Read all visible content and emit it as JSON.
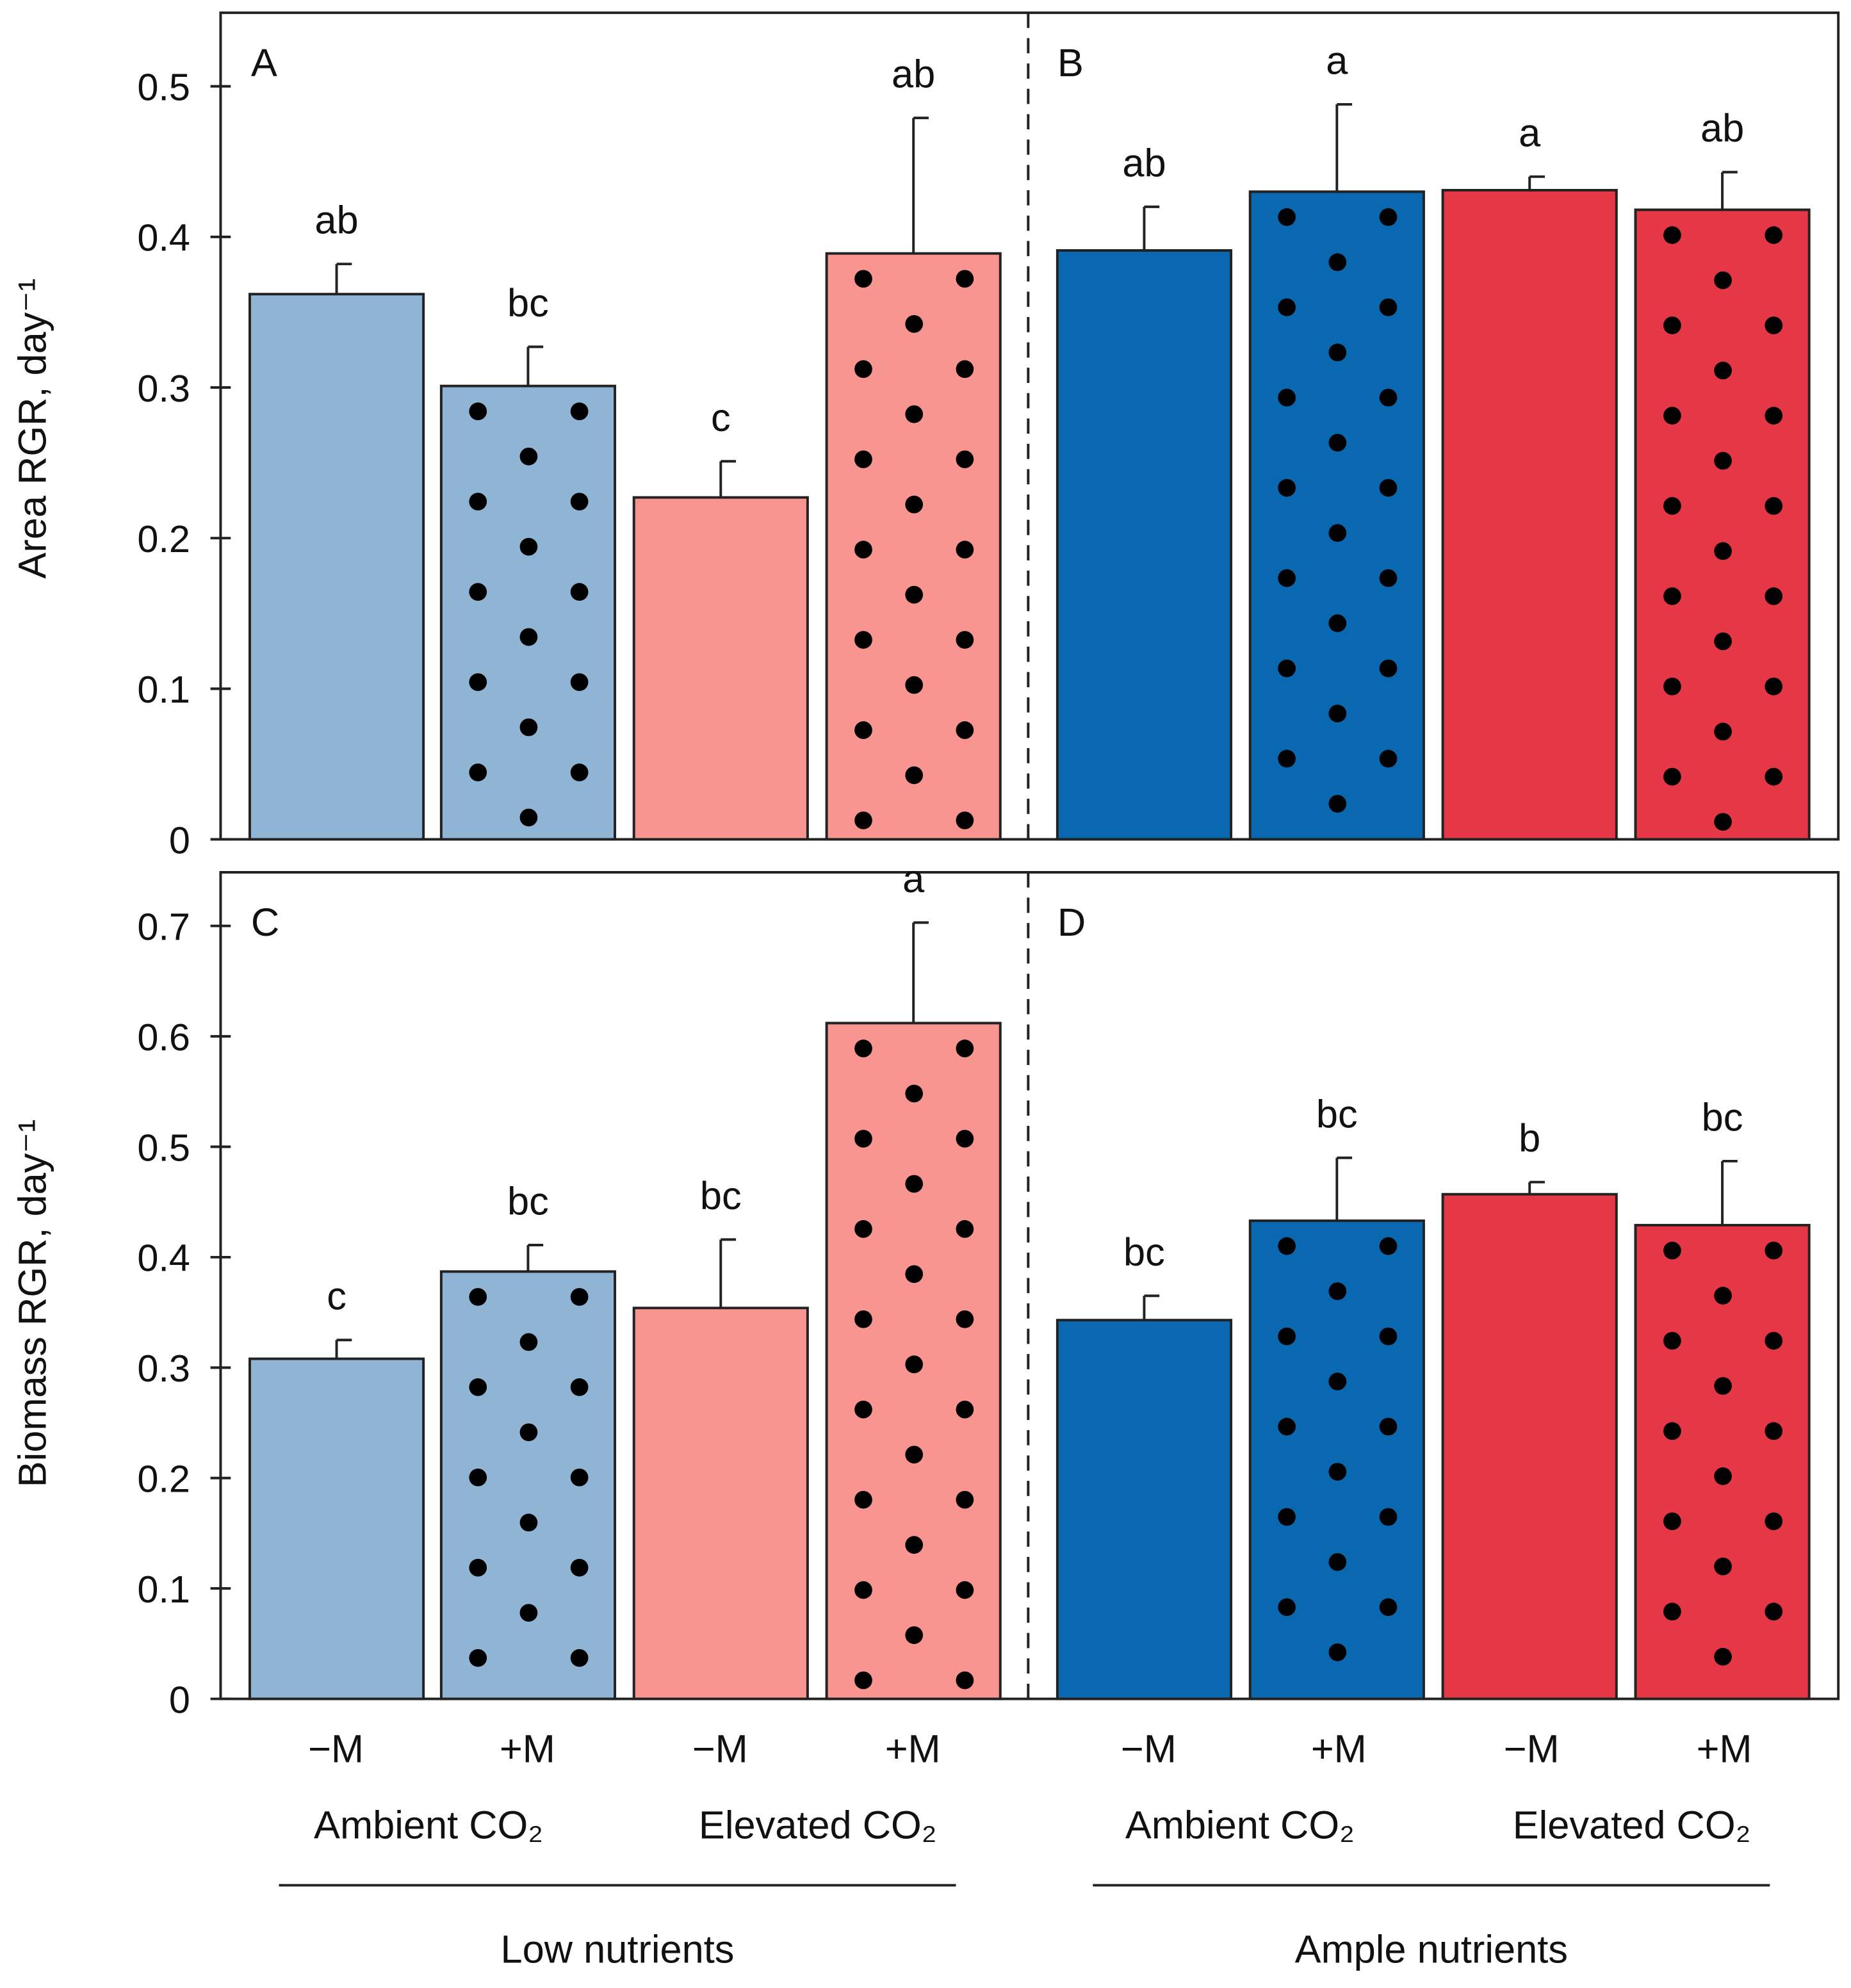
{
  "colors": {
    "ambient_low": "#8fb4d4",
    "elevated_low": "#f99591",
    "ambient_ample": "#0a68b0",
    "elevated_ample": "#e63746"
  },
  "y_labels": {
    "top": "Area RGR, day⁻¹",
    "bottom": "Biomass RGR, day⁻¹"
  },
  "x_axis": {
    "treatments": [
      "−M",
      "+M",
      "−M",
      "+M",
      "−M",
      "+M",
      "−M",
      "+M"
    ],
    "co2_groups": [
      "Ambient CO₂",
      "Elevated CO₂",
      "Ambient CO₂",
      "Elevated CO₂"
    ],
    "nutrient_groups": [
      "Low nutrients",
      "Ample nutrients"
    ]
  },
  "chart_data": [
    {
      "type": "bar",
      "panel": "A",
      "ylabel": "Area RGR, day⁻¹",
      "ylim": [
        0,
        0.55
      ],
      "yticks": [
        "0",
        "0.1",
        "0.2",
        "0.3",
        "0.4",
        "0.5"
      ],
      "nutrients": "Low nutrients",
      "categories": [
        "Ambient CO₂ −M",
        "Ambient CO₂ +M",
        "Elevated CO₂ −M",
        "Elevated CO₂ +M"
      ],
      "values": [
        0.362,
        0.301,
        0.227,
        0.389
      ],
      "error_upper": [
        0.382,
        0.327,
        0.251,
        0.479
      ],
      "letters": [
        "ab",
        "bc",
        "c",
        "ab"
      ],
      "dotted": [
        false,
        true,
        false,
        true
      ]
    },
    {
      "type": "bar",
      "panel": "B",
      "ylabel": "Area RGR, day⁻¹",
      "ylim": [
        0,
        0.55
      ],
      "nutrients": "Ample nutrients",
      "categories": [
        "Ambient CO₂ −M",
        "Ambient CO₂ +M",
        "Elevated CO₂ −M",
        "Elevated CO₂ +M"
      ],
      "values": [
        0.391,
        0.43,
        0.431,
        0.418
      ],
      "error_upper": [
        0.42,
        0.488,
        0.44,
        0.443
      ],
      "letters": [
        "ab",
        "a",
        "a",
        "ab"
      ],
      "dotted": [
        false,
        true,
        false,
        true
      ]
    },
    {
      "type": "bar",
      "panel": "C",
      "ylabel": "Biomass RGR, day⁻¹",
      "ylim": [
        0,
        0.75
      ],
      "yticks": [
        "0",
        "0.1",
        "0.2",
        "0.3",
        "0.4",
        "0.5",
        "0.6",
        "0.7"
      ],
      "nutrients": "Low nutrients",
      "categories": [
        "Ambient CO₂ −M",
        "Ambient CO₂ +M",
        "Elevated CO₂ −M",
        "Elevated CO₂ +M"
      ],
      "values": [
        0.308,
        0.387,
        0.354,
        0.612
      ],
      "error_upper": [
        0.325,
        0.411,
        0.416,
        0.703
      ],
      "letters": [
        "c",
        "bc",
        "bc",
        "a"
      ],
      "dotted": [
        false,
        true,
        false,
        true
      ]
    },
    {
      "type": "bar",
      "panel": "D",
      "ylabel": "Biomass RGR, day⁻¹",
      "ylim": [
        0,
        0.75
      ],
      "nutrients": "Ample nutrients",
      "categories": [
        "Ambient CO₂ −M",
        "Ambient CO₂ +M",
        "Elevated CO₂ −M",
        "Elevated CO₂ +M"
      ],
      "values": [
        0.343,
        0.433,
        0.457,
        0.429
      ],
      "error_upper": [
        0.365,
        0.49,
        0.468,
        0.487
      ],
      "letters": [
        "bc",
        "bc",
        "b",
        "bc"
      ],
      "dotted": [
        false,
        true,
        false,
        true
      ]
    }
  ]
}
